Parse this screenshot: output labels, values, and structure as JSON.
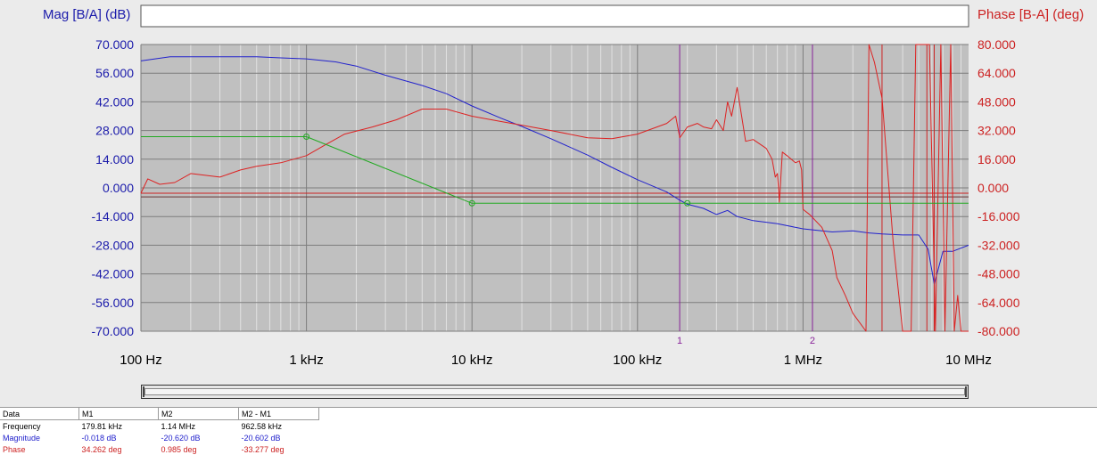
{
  "chart_data": {
    "type": "line",
    "xscale": "log",
    "xlim": [
      100,
      10000000
    ],
    "ylim": [
      -70,
      70
    ],
    "y2lim": [
      -80,
      80
    ],
    "ylabel": "Mag [B/A] (dB)",
    "y2label": "Phase [B-A] (deg)",
    "x_tick_values": [
      100,
      1000,
      10000,
      100000,
      1000000,
      10000000
    ],
    "x_tick_labels": [
      "100 Hz",
      "1 kHz",
      "10 kHz",
      "100 kHz",
      "1 MHz",
      "10 MHz"
    ],
    "y_tick_labels": [
      "70.000",
      "56.000",
      "42.000",
      "28.000",
      "14.000",
      "0.000",
      "-14.000",
      "-28.000",
      "-42.000",
      "-56.000",
      "-70.000"
    ],
    "y2_tick_labels": [
      "80.000",
      "64.000",
      "48.000",
      "32.000",
      "16.000",
      "0.000",
      "-16.000",
      "-32.000",
      "-48.000",
      "-64.000",
      "-80.000"
    ],
    "grid": true,
    "colors": {
      "magnitude": "#2222cc",
      "phase": "#dd2222",
      "reference": "#22aa22",
      "marker": "#882299",
      "plot_bg": "#c0c0c0"
    },
    "series": [
      {
        "key": "magnitude",
        "axis": "left",
        "x": [
          100,
          150,
          200,
          300,
          500,
          700,
          1000,
          1500,
          2000,
          3000,
          5000,
          7000,
          10000,
          15000,
          20000,
          30000,
          50000,
          70000,
          100000,
          150000,
          180000,
          200000,
          250000,
          300000,
          350000,
          400000,
          500000,
          700000,
          1000000,
          1500000,
          2000000,
          2500000,
          3000000,
          4000000,
          5000000,
          5700000,
          6200000,
          7000000,
          8000000,
          10000000
        ],
        "y": [
          62,
          64,
          64,
          64,
          64,
          63.5,
          63,
          61.5,
          59.5,
          55,
          50,
          46,
          40,
          34,
          30,
          24,
          16,
          10,
          4,
          -2,
          -6,
          -8,
          -10,
          -13,
          -11,
          -14,
          -16,
          -17.5,
          -20,
          -21.5,
          -21,
          -22,
          -22.5,
          -23,
          -23,
          -30,
          -47,
          -31,
          -31,
          -28
        ]
      },
      {
        "key": "phase",
        "axis": "right",
        "x": [
          100,
          110,
          130,
          160,
          200,
          300,
          400,
          500,
          700,
          1000,
          1300,
          1700,
          2500,
          3500,
          5000,
          7000,
          10000,
          15000,
          20000,
          30000,
          50000,
          70000,
          100000,
          150000,
          170000,
          180000,
          200000,
          230000,
          250000,
          280000,
          300000,
          330000,
          350000,
          370000,
          400000,
          450000,
          500000,
          600000,
          650000,
          680000,
          700000,
          720000,
          750000,
          800000,
          900000,
          950000,
          980000,
          1000000,
          1100000,
          1300000,
          1500000,
          1600000,
          1800000,
          2000000,
          2400000,
          2500000,
          2700000,
          3000000,
          3500000,
          4000000,
          4500000,
          4800000,
          5200000,
          5800000,
          6300000,
          6800000,
          7200000,
          7800000,
          8200000,
          8600000,
          9000000,
          9500000,
          10000000
        ],
        "y": [
          -3,
          5,
          2,
          3,
          8,
          6,
          10,
          12,
          14,
          18,
          24,
          30,
          34,
          38,
          44,
          44,
          40,
          37,
          35,
          32,
          28,
          27.5,
          30,
          36,
          40,
          28,
          34,
          36,
          34,
          33,
          38,
          32,
          48,
          40,
          56,
          26,
          27,
          22,
          16,
          6,
          8,
          -8,
          20,
          18,
          14,
          15,
          10,
          -12,
          -15,
          -22,
          -35,
          -50,
          -60,
          -70,
          -80,
          80,
          70,
          50,
          -30,
          -80,
          -80,
          80,
          80,
          80,
          -80,
          80,
          -80,
          80,
          -80,
          -60,
          -80,
          -80,
          -80
        ]
      },
      {
        "key": "reference",
        "axis": "left",
        "x": [
          100,
          1000,
          10000,
          10000000
        ],
        "y": [
          25,
          25,
          -7.5,
          -7.5
        ],
        "markers_at": [
          1000,
          10000,
          200000
        ]
      }
    ],
    "horizontal_lines": [
      {
        "axis": "right",
        "value": -3,
        "color": "#cc2222"
      },
      {
        "axis": "right",
        "value": -5,
        "color": "#663333"
      }
    ],
    "vertical_lines": [
      {
        "x": 179810,
        "label": "1",
        "color": "#882299"
      },
      {
        "x": 1140000,
        "label": "2",
        "color": "#882299"
      },
      {
        "x": 3000000,
        "label": "",
        "color": "#cc2222"
      },
      {
        "x": 5600000,
        "label": "",
        "color": "#cc2222"
      },
      {
        "x": 6200000,
        "label": "",
        "color": "#cc2222"
      }
    ]
  },
  "markers": {
    "headers": [
      "Data",
      "M1",
      "M2",
      "M2 - M1"
    ],
    "rows": [
      {
        "label": "Frequency",
        "values": [
          "179.81 kHz",
          "1.14 MHz",
          "962.58 kHz"
        ]
      },
      {
        "label": "Magnitude",
        "values": [
          "-0.018 dB",
          "-20.620 dB",
          "-20.602 dB"
        ]
      },
      {
        "label": "Phase",
        "values": [
          "34.262 deg",
          "0.985 deg",
          "-33.277 deg"
        ]
      }
    ]
  }
}
